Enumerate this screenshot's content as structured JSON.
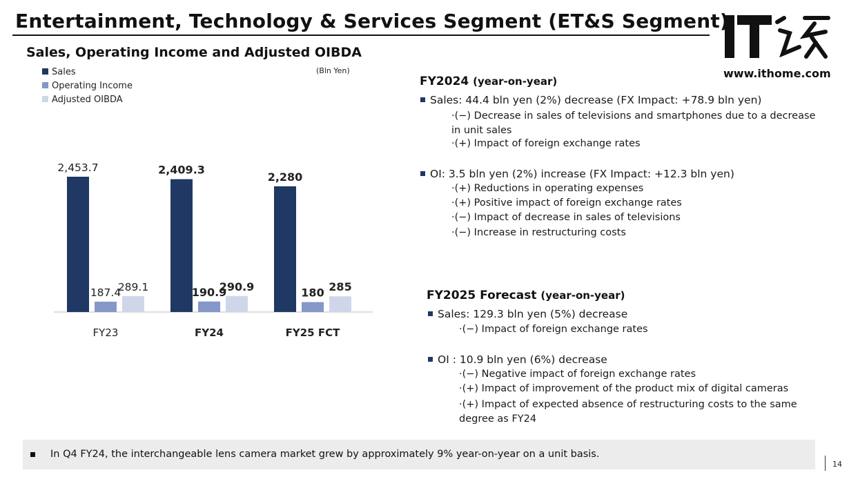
{
  "header": {
    "title": "Entertainment, Technology & Services Segment (ET&S Segment)",
    "logo_text": "IT之家",
    "logo_url": "www.ithome.com"
  },
  "chart_subtitle": "Sales, Operating Income and Adjusted OIBDA",
  "unit_note": "(Bln Yen)",
  "chart_data": {
    "type": "bar",
    "title": "Sales, Operating Income and Adjusted OIBDA",
    "categories": [
      "FY23",
      "FY24",
      "FY25 FCT"
    ],
    "category_bold": [
      false,
      true,
      true
    ],
    "series": [
      {
        "name": "Sales",
        "color": "#1f3864",
        "values": [
          2453.7,
          2409.3,
          2280
        ],
        "labels": [
          "2,453.7",
          "2,409.3",
          "2,280"
        ]
      },
      {
        "name": "Operating Income",
        "color": "#8497c8",
        "values": [
          187.4,
          190.9,
          180
        ],
        "labels": [
          "187.4",
          "190.9",
          "180"
        ]
      },
      {
        "name": "Adjusted OIBDA",
        "color": "#d0d6ea",
        "values": [
          289.1,
          290.9,
          285
        ],
        "labels": [
          "289.1",
          "290.9",
          "285"
        ]
      }
    ],
    "legend_position": "top-left",
    "grid": false
  },
  "fy2024": {
    "heading": "FY2024",
    "heading_suffix": "(year-on-year)",
    "sales": {
      "text": "Sales: 44.4 bln yen (2%) decrease (FX Impact: +78.9 bln yen)",
      "items": [
        "·(−) Decrease in sales of televisions and smartphones due to a decrease in unit sales",
        "·(+) Impact of foreign exchange rates"
      ]
    },
    "oi": {
      "text": "OI: 3.5 bln yen (2%) increase (FX Impact: +12.3 bln yen)",
      "items": [
        "·(+) Reductions in operating expenses",
        "·(+) Positive impact of foreign exchange rates",
        "·(−) Impact of decrease in sales of televisions",
        "·(−) Increase in restructuring costs"
      ]
    }
  },
  "fy2025": {
    "heading": "FY2025 Forecast",
    "heading_suffix": "(year-on-year)",
    "sales": {
      "text": "Sales: 129.3 bln yen (5%) decrease",
      "items": [
        "·(−) Impact of foreign exchange rates"
      ]
    },
    "oi": {
      "text": "OI : 10.9 bln yen (6%) decrease",
      "items": [
        "·(−) Negative impact of foreign exchange rates",
        "·(+) Impact of improvement of the product mix of digital cameras",
        "·(+) Impact of expected absence of restructuring costs to the same degree as FY24"
      ]
    }
  },
  "footer": {
    "note": "In Q4 FY24, the interchangeable lens camera market grew by approximately 9% year-on-year on a unit basis.",
    "page_number": "14"
  }
}
